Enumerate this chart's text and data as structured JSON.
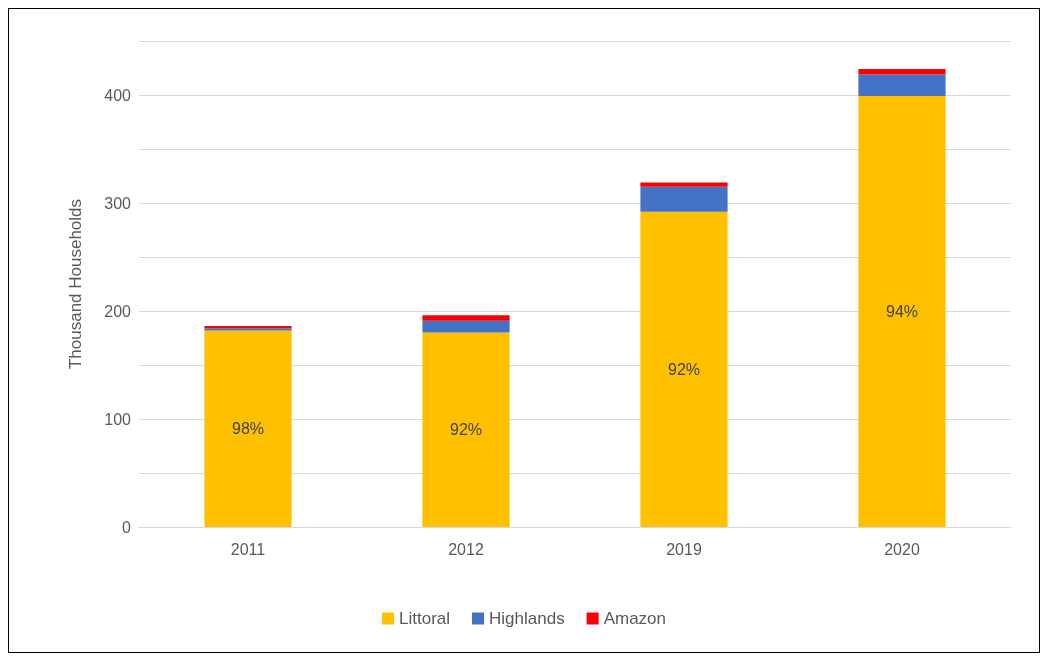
{
  "chart_data": {
    "type": "bar",
    "stacked": true,
    "ylabel": "Thousand Households",
    "categories": [
      "2011",
      "2012",
      "2019",
      "2020"
    ],
    "series": [
      {
        "name": "Littoral",
        "color": "#ffc000",
        "values": [
          182,
          180,
          292,
          399
        ]
      },
      {
        "name": "Highlands",
        "color": "#4472c4",
        "values": [
          2,
          11,
          23,
          20
        ]
      },
      {
        "name": "Amazon",
        "color": "#ff0000",
        "values": [
          2,
          5,
          4,
          5
        ]
      }
    ],
    "ylim": [
      0,
      450
    ],
    "yticks": [
      0,
      {
        "value": 50,
        "label": null
      },
      100,
      {
        "value": 150,
        "label": null
      },
      200,
      {
        "value": 250,
        "label": null
      },
      300,
      {
        "value": 350,
        "label": null
      },
      400,
      {
        "value": 450,
        "label": null
      }
    ],
    "annotations": [
      "98%",
      "92%",
      "92%",
      "94%"
    ],
    "grid": true,
    "legend": "bottom"
  }
}
